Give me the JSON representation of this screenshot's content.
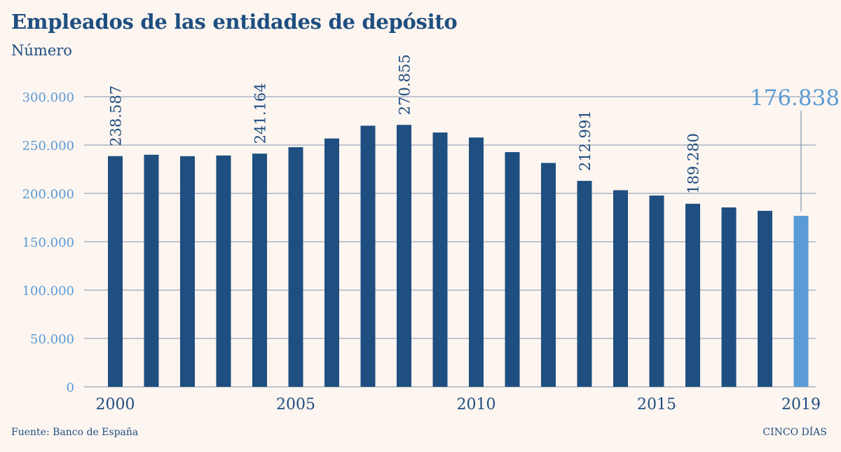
{
  "header": {
    "title": "Empleados de las entidades de depósito",
    "subtitle": "Número"
  },
  "footer": {
    "source": "Fuente: Banco de España",
    "brand": "CINCO DÍAS"
  },
  "colors": {
    "bar": "#1f4e80",
    "highlight_bar": "#5b9bd5",
    "axis_text": "#5b9bd5",
    "grid": "#7f95ad",
    "text": "#1f4e80",
    "background": "#fdf5f0"
  },
  "chart_data": {
    "type": "bar",
    "title": "Empleados de las entidades de depósito",
    "subtitle": "Número",
    "categories": [
      "2000",
      "2001",
      "2002",
      "2003",
      "2004",
      "2005",
      "2006",
      "2007",
      "2008",
      "2009",
      "2010",
      "2011",
      "2012",
      "2013",
      "2014",
      "2015",
      "2016",
      "2017",
      "2018",
      "2019"
    ],
    "values": [
      238587,
      240000,
      238500,
      239200,
      241164,
      247800,
      256800,
      270000,
      270855,
      263000,
      257800,
      242700,
      231500,
      212991,
      203300,
      197800,
      189280,
      185500,
      182000,
      176838
    ],
    "x_tick_labels": [
      "2000",
      "2005",
      "2010",
      "2015",
      "2019"
    ],
    "y_ticks": [
      0,
      50000,
      100000,
      150000,
      200000,
      250000,
      300000
    ],
    "y_tick_labels": [
      "0",
      "50.000",
      "100.000",
      "150.000",
      "200.000",
      "250.000",
      "300.000"
    ],
    "ylim": [
      0,
      300000
    ],
    "grid": true,
    "highlight_category": "2019",
    "data_labels": [
      {
        "category": "2000",
        "text": "238.587"
      },
      {
        "category": "2004",
        "text": "241.164"
      },
      {
        "category": "2008",
        "text": "270.855"
      },
      {
        "category": "2013",
        "text": "212.991"
      },
      {
        "category": "2016",
        "text": "189.280"
      },
      {
        "category": "2019",
        "text": "176.838"
      }
    ]
  }
}
